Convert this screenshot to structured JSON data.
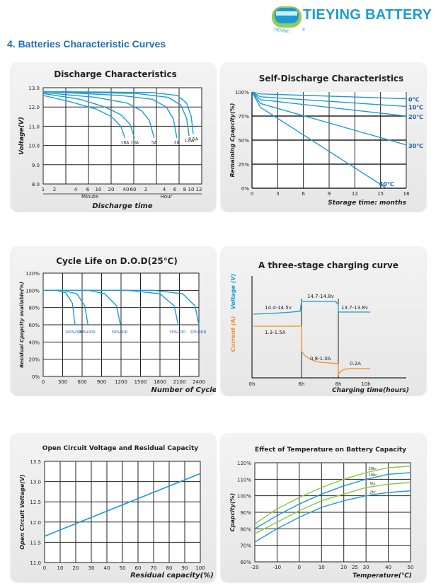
{
  "brand": {
    "name": "TIEYING BATTERY",
    "logo_text": "TIEYING",
    "logo_mark": "®",
    "logo_color": "#1b9bd7"
  },
  "section_title": "4.  Batteries Characteristic Curves",
  "colors": {
    "blue": "#1c9ad6",
    "orange": "#f08c2a",
    "green": "#8cc63f",
    "grid": "#222222"
  },
  "chart_data": [
    {
      "id": "discharge",
      "type": "line",
      "title": "Discharge Characteristics",
      "xlabel": "Discharge time",
      "ylabel": "Voltage(V)",
      "ylim": [
        8.0,
        13.0
      ],
      "y_ticks": [
        "8.0",
        "9.0",
        "10.0",
        "11.0",
        "12.0",
        "13.0"
      ],
      "x_ticks": [
        "1",
        "2",
        "4",
        "6",
        "10",
        "20",
        "40",
        "60",
        "2",
        "4",
        "6",
        "8",
        "10",
        "12"
      ],
      "x_unit_labels": [
        "Minute",
        "Hour"
      ],
      "series": [
        {
          "name": "18A",
          "x_minutes": [
            1,
            3,
            10,
            20,
            30,
            36
          ],
          "y": [
            12.6,
            12.3,
            11.9,
            11.5,
            11.0,
            10.4
          ]
        },
        {
          "name": "10A",
          "x_minutes": [
            1,
            5,
            15,
            30,
            45,
            55
          ],
          "y": [
            12.7,
            12.4,
            12.0,
            11.6,
            11.1,
            10.4
          ]
        },
        {
          "name": "5A",
          "x_minutes": [
            1,
            10,
            40,
            75,
            105,
            130
          ],
          "y": [
            12.75,
            12.5,
            12.2,
            11.8,
            11.3,
            10.4
          ]
        },
        {
          "name": "2A",
          "x_minutes": [
            1,
            30,
            120,
            220,
            300,
            350
          ],
          "y": [
            12.8,
            12.6,
            12.4,
            12.0,
            11.4,
            10.4
          ]
        },
        {
          "name": "1.0A",
          "x_minutes": [
            1,
            60,
            240,
            420,
            540,
            600
          ],
          "y": [
            12.8,
            12.7,
            12.5,
            12.1,
            11.4,
            10.5
          ]
        },
        {
          "name": "0.5A",
          "x_minutes": [
            1,
            120,
            360,
            540,
            660,
            720
          ],
          "y": [
            12.8,
            12.75,
            12.6,
            12.2,
            11.5,
            10.6
          ]
        }
      ]
    },
    {
      "id": "self-discharge",
      "type": "line",
      "title": "Self-Discharge Characteristics",
      "xlabel": "Storage time: months",
      "ylabel": "Remaining Cpapcity(%)",
      "xlim": [
        0,
        18
      ],
      "ylim": [
        0,
        100
      ],
      "x_ticks": [
        "0",
        "3",
        "6",
        "9",
        "12",
        "15",
        "18"
      ],
      "y_ticks": [
        "0%",
        "25%",
        "50%",
        "75%",
        "100%"
      ],
      "series": [
        {
          "name": "0℃",
          "x": [
            0,
            1,
            18
          ],
          "y": [
            100,
            98,
            93
          ]
        },
        {
          "name": "10℃",
          "x": [
            0,
            1,
            18
          ],
          "y": [
            100,
            95,
            85
          ]
        },
        {
          "name": "20℃",
          "x": [
            0,
            1,
            18
          ],
          "y": [
            100,
            92,
            75
          ]
        },
        {
          "name": "30℃",
          "x": [
            0,
            1,
            18
          ],
          "y": [
            100,
            88,
            45
          ]
        },
        {
          "name": "40℃",
          "x": [
            0,
            1,
            15.7
          ],
          "y": [
            100,
            84,
            0
          ]
        }
      ]
    },
    {
      "id": "cycle-life",
      "type": "line",
      "title": "Cycle Life on D.O.D(25℃)",
      "xlabel": "Number of Cycles",
      "ylabel": "Residual Cpapcity available(%)",
      "xlim": [
        0,
        2400
      ],
      "ylim": [
        0,
        120
      ],
      "x_ticks": [
        "0",
        "300",
        "600",
        "900",
        "1200",
        "1500",
        "1800",
        "2100",
        "2400"
      ],
      "y_ticks": [
        "0%",
        "20%",
        "40%",
        "60%",
        "80%",
        "100%",
        "120%"
      ],
      "series": [
        {
          "name": "100%DOD",
          "x": [
            0,
            200,
            350,
            450,
            490
          ],
          "y": [
            100,
            100,
            97,
            85,
            60
          ]
        },
        {
          "name": "80%DOD",
          "x": [
            0,
            300,
            520,
            640,
            690
          ],
          "y": [
            100,
            100,
            96,
            82,
            60
          ]
        },
        {
          "name": "50%DOD",
          "x": [
            0,
            700,
            950,
            1130,
            1190
          ],
          "y": [
            100,
            100,
            96,
            82,
            60
          ]
        },
        {
          "name": "30%DOD",
          "x": [
            0,
            1300,
            1800,
            2020,
            2080
          ],
          "y": [
            100,
            100,
            96,
            82,
            60
          ]
        },
        {
          "name": "20%DOD",
          "x": [
            0,
            1700,
            2150,
            2340,
            2400
          ],
          "y": [
            100,
            100,
            96,
            82,
            60
          ]
        }
      ]
    },
    {
      "id": "charging",
      "type": "line",
      "title": "A three-stage charging curve",
      "xlabel": "Charging time(hours)",
      "ylabel_current": "Current (A)",
      "ylabel_voltage": "Voltage (V)",
      "x_ticks": [
        "0h",
        "6h",
        "8h",
        "10h"
      ],
      "annotations": [
        "14.4-14.5v",
        "14.7-14.8v",
        "13.7-13.8v",
        "1.3-1.5A",
        "0.8-1.0A",
        "0.2A"
      ]
    },
    {
      "id": "ocv",
      "type": "line",
      "title": "Open Circuit Voltage and Residual Capacity",
      "xlabel": "Residual capacity(%)",
      "ylabel": "Open Circuit Voltage(V)",
      "xlim": [
        0,
        100
      ],
      "ylim": [
        11.0,
        13.5
      ],
      "x_ticks": [
        "0",
        "10",
        "20",
        "30",
        "40",
        "50",
        "60",
        "70",
        "80",
        "90",
        "100"
      ],
      "y_ticks": [
        "11.0",
        "11.5",
        "12.0",
        "12.5",
        "13.0",
        "13.5"
      ],
      "series": [
        {
          "name": "OCV",
          "x": [
            0,
            100
          ],
          "y": [
            11.65,
            13.2
          ]
        }
      ]
    },
    {
      "id": "temperature",
      "type": "line",
      "title": "Effect of Temperature on Battery Capacity",
      "xlabel": "Temperature(℃)",
      "ylabel": "Cpapcity(%)",
      "xlim": [
        -20,
        50
      ],
      "ylim": [
        60,
        120
      ],
      "x_ticks": [
        "-20",
        "-10",
        "0",
        "10",
        "20",
        "25",
        "30",
        "40",
        "50"
      ],
      "y_ticks": [
        "60%",
        "70%",
        "80%",
        "90%",
        "100%",
        "110%",
        "120%"
      ],
      "series": [
        {
          "name": "20hr",
          "color": "green",
          "x": [
            -20,
            -10,
            0,
            10,
            20,
            30,
            40,
            50
          ],
          "y": [
            83,
            92,
            99,
            105,
            110,
            114,
            117,
            118
          ]
        },
        {
          "name": "10hr",
          "color": "blue",
          "x": [
            -20,
            -10,
            0,
            10,
            20,
            30,
            40,
            50
          ],
          "y": [
            80,
            88,
            95,
            101,
            106,
            110,
            113,
            114
          ]
        },
        {
          "name": "5hr",
          "color": "green",
          "x": [
            -20,
            -10,
            0,
            10,
            20,
            30,
            40,
            50
          ],
          "y": [
            77,
            84,
            91,
            97,
            101,
            105,
            107,
            108
          ]
        },
        {
          "name": "2hr",
          "color": "blue",
          "x": [
            -20,
            -10,
            0,
            10,
            20,
            30,
            40,
            50
          ],
          "y": [
            72,
            80,
            87,
            93,
            97,
            100,
            102,
            103
          ]
        }
      ]
    }
  ]
}
